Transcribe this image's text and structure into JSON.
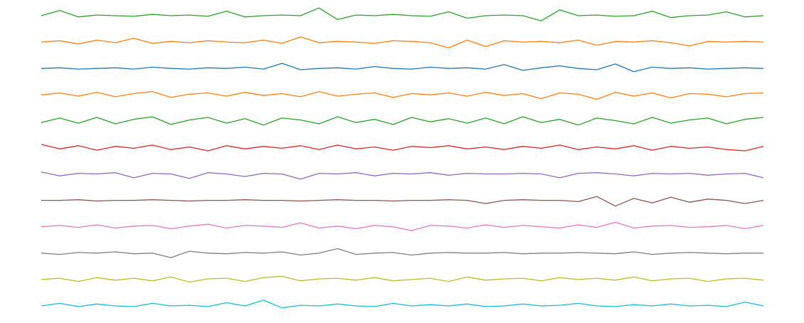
{
  "chart_data": {
    "type": "line",
    "ylim": [
      -20,
      20
    ],
    "series": [
      {
        "color": "#2ca02c",
        "values": [
          0,
          8,
          -2,
          1,
          0,
          -1,
          2,
          0,
          1,
          -1,
          7,
          -2,
          0,
          1,
          0,
          12,
          -6,
          1,
          0,
          2,
          0,
          -1,
          6,
          -4,
          0,
          1,
          0,
          -8,
          9,
          0,
          1,
          -1,
          0,
          7,
          -3,
          0,
          1,
          6,
          -2,
          0
        ]
      },
      {
        "color": "#ff7f0e",
        "values": [
          0,
          2,
          -3,
          3,
          -1,
          6,
          -2,
          1,
          -1,
          2,
          0,
          -1,
          3,
          -2,
          8,
          -1,
          1,
          0,
          -2,
          2,
          1,
          -1,
          -9,
          3,
          -7,
          2,
          0,
          1,
          -1,
          3,
          -5,
          1,
          0,
          2,
          -1,
          -6,
          1,
          0,
          1,
          0
        ]
      },
      {
        "color": "#1f77b4",
        "values": [
          0,
          1,
          -1,
          0,
          1,
          -1,
          2,
          0,
          -1,
          1,
          0,
          2,
          -1,
          8,
          -2,
          0,
          1,
          -1,
          3,
          0,
          -1,
          2,
          0,
          1,
          -1,
          6,
          -3,
          1,
          4,
          0,
          -2,
          7,
          -5,
          2,
          0,
          1,
          -1,
          0,
          1,
          0
        ]
      },
      {
        "color": "#ff7f0e",
        "values": [
          0,
          3,
          -2,
          4,
          -3,
          2,
          5,
          -4,
          1,
          3,
          -2,
          4,
          -1,
          2,
          -3,
          5,
          -2,
          1,
          3,
          -4,
          2,
          0,
          3,
          -2,
          4,
          -1,
          2,
          -6,
          3,
          1,
          -7,
          4,
          -2,
          3,
          -5,
          2,
          1,
          -3,
          2,
          3
        ]
      },
      {
        "color": "#2ca02c",
        "values": [
          -2,
          5,
          -3,
          6,
          -4,
          3,
          7,
          -5,
          2,
          6,
          -3,
          4,
          -6,
          5,
          2,
          -4,
          7,
          -2,
          3,
          -5,
          6,
          -1,
          4,
          -3,
          5,
          -4,
          7,
          -2,
          3,
          -6,
          5,
          1,
          -4,
          6,
          -3,
          2,
          5,
          -4,
          3,
          6
        ]
      },
      {
        "color": "#d62728",
        "values": [
          5,
          -2,
          3,
          -4,
          2,
          -1,
          4,
          -3,
          1,
          -5,
          3,
          -2,
          2,
          -1,
          3,
          -3,
          4,
          -2,
          1,
          -4,
          2,
          0,
          3,
          -2,
          1,
          -3,
          2,
          -1,
          4,
          -3,
          1,
          -2,
          3,
          -4,
          2,
          -1,
          1,
          -3,
          -5,
          2
        ]
      },
      {
        "color": "#9467bd",
        "values": [
          3,
          -3,
          1,
          0,
          2,
          -6,
          1,
          0,
          -7,
          2,
          0,
          -4,
          1,
          0,
          -8,
          1,
          0,
          2,
          -3,
          1,
          0,
          2,
          -2,
          1,
          0,
          0,
          1,
          0,
          -6,
          1,
          2,
          0,
          -3,
          1,
          0,
          1,
          -2,
          0,
          1,
          -6
        ]
      },
      {
        "color": "#8c564b",
        "values": [
          0,
          0,
          1,
          -1,
          0,
          0,
          1,
          0,
          -1,
          0,
          0,
          1,
          0,
          0,
          -1,
          0,
          1,
          0,
          0,
          -1,
          0,
          0,
          1,
          0,
          -5,
          0,
          1,
          0,
          0,
          -2,
          6,
          -9,
          3,
          -4,
          5,
          -3,
          2,
          0,
          -5,
          0
        ]
      },
      {
        "color": "#e377c2",
        "values": [
          0,
          2,
          -1,
          3,
          -2,
          1,
          2,
          -3,
          1,
          4,
          -2,
          2,
          1,
          -1,
          6,
          -2,
          1,
          -3,
          2,
          0,
          -6,
          2,
          1,
          -2,
          3,
          -1,
          2,
          0,
          -2,
          3,
          -1,
          7,
          -2,
          1,
          2,
          -1,
          0,
          2,
          -3,
          2
        ]
      },
      {
        "color": "#7f7f7f",
        "values": [
          0,
          -2,
          1,
          0,
          2,
          -1,
          0,
          -7,
          3,
          0,
          -1,
          1,
          0,
          2,
          -3,
          0,
          7,
          -2,
          0,
          1,
          -3,
          0,
          1,
          0,
          0,
          1,
          -1,
          0,
          0,
          1,
          0,
          -1,
          2,
          -2,
          0,
          1,
          0,
          -1,
          0,
          0
        ]
      },
      {
        "color": "#bcbd22",
        "values": [
          0,
          2,
          -3,
          3,
          -1,
          2,
          -2,
          4,
          -4,
          1,
          2,
          -3,
          3,
          5,
          -2,
          1,
          2,
          -1,
          3,
          -2,
          0,
          2,
          -3,
          4,
          -1,
          1,
          2,
          -2,
          3,
          0,
          2,
          -1,
          4,
          -2,
          1,
          2,
          -3,
          1,
          2,
          -1
        ]
      },
      {
        "color": "#17becf",
        "values": [
          0,
          4,
          -1,
          3,
          0,
          -1,
          4,
          0,
          1,
          -1,
          5,
          0,
          9,
          -3,
          1,
          0,
          3,
          0,
          -1,
          4,
          0,
          2,
          0,
          3,
          -1,
          0,
          3,
          0,
          1,
          4,
          0,
          -1,
          2,
          0,
          3,
          0,
          1,
          -1,
          6,
          0
        ]
      }
    ]
  }
}
